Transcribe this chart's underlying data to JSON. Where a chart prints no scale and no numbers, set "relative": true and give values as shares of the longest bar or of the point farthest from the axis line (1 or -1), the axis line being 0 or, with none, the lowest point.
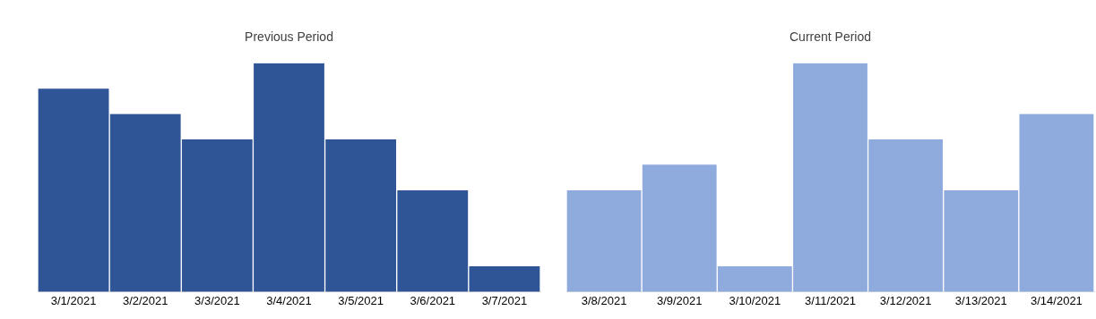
{
  "chart_data": [
    {
      "type": "bar",
      "title": "Previous Period",
      "categories": [
        "3/1/2021",
        "3/2/2021",
        "3/3/2021",
        "3/4/2021",
        "3/5/2021",
        "3/6/2021",
        "3/7/2021"
      ],
      "relative": true,
      "legend": false,
      "series": [
        {
          "color": "#2f5597",
          "values": [
            0.889,
            0.778,
            0.667,
            1,
            0.667,
            0.444,
            0.111
          ]
        }
      ]
    },
    {
      "type": "bar",
      "title": "Current Period",
      "categories": [
        "3/8/2021",
        "3/9/2021",
        "3/10/2021",
        "3/11/2021",
        "3/12/2021",
        "3/13/2021",
        "3/14/2021"
      ],
      "relative": true,
      "legend": false,
      "series": [
        {
          "color": "#8faadc",
          "values": [
            0.444,
            0.556,
            0.111,
            1,
            0.667,
            0.444,
            0.778
          ]
        }
      ]
    }
  ]
}
